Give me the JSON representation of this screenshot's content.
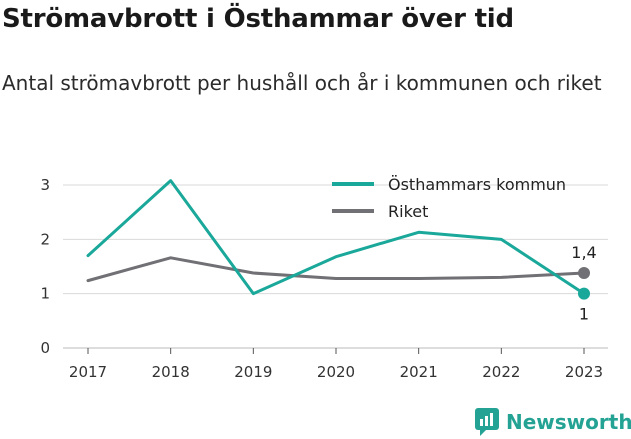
{
  "title": "Strömavbrott i Östhammar över tid",
  "subtitle": "Antal strömavbrott per hushåll och år i kommunen och riket",
  "brand": {
    "name": "Newsworthy"
  },
  "colors": {
    "kommun": "#1aa89a",
    "riket": "#707075",
    "grid": "#d9d9d9",
    "brand": "#24a394"
  },
  "chart_data": {
    "type": "line",
    "categories": [
      "2017",
      "2018",
      "2019",
      "2020",
      "2021",
      "2022",
      "2023"
    ],
    "series": [
      {
        "name": "Östhammars kommun",
        "values": [
          1.7,
          3.08,
          1.0,
          1.68,
          2.13,
          2.0,
          1.0
        ],
        "end_label": "1"
      },
      {
        "name": "Riket",
        "values": [
          1.24,
          1.66,
          1.38,
          1.28,
          1.28,
          1.3,
          1.38
        ],
        "end_label": "1,4"
      }
    ],
    "yticks": [
      "0",
      "1",
      "2",
      "3"
    ],
    "ylim": [
      0,
      3
    ],
    "grid": true,
    "legend_position": "top-right"
  }
}
